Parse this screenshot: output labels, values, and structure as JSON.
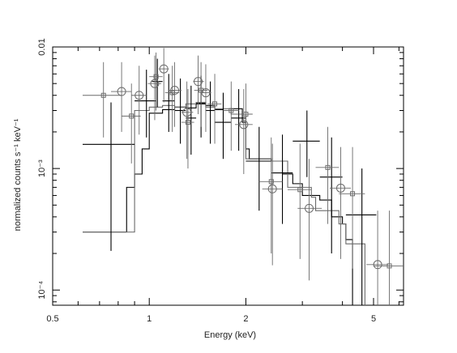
{
  "chart_data": {
    "type": "scatter",
    "title": "",
    "xlabel": "Energy (keV)",
    "ylabel": "normalized counts s⁻¹ keV⁻¹",
    "x_scale": "log",
    "y_scale": "log",
    "xlim": [
      0.5,
      6.2
    ],
    "ylim": [
      7.5e-05,
      0.01
    ],
    "x_ticks": [
      {
        "value": 0.5,
        "label": "0.5"
      },
      {
        "value": 1,
        "label": "1"
      },
      {
        "value": 2,
        "label": "2"
      },
      {
        "value": 5,
        "label": "5"
      }
    ],
    "y_ticks": [
      {
        "value": 0.0001,
        "label": "10⁻⁴"
      },
      {
        "value": 0.001,
        "label": "10⁻³"
      },
      {
        "value": 0.01,
        "label": "0.01"
      }
    ],
    "grid": false,
    "legend": false,
    "colors": {
      "black": "#000000",
      "grey": "#6a6a6a",
      "axis": "#000000"
    },
    "series": [
      {
        "marker": "cross",
        "color": "#000000",
        "points": [
          {
            "x": 0.76,
            "xerr": [
              0.62,
              0.9
            ],
            "y": 0.00158,
            "yerr": [
              0.00021,
              0.0035
            ]
          },
          {
            "x": 0.98,
            "xerr": [
              0.9,
              1.05
            ],
            "y": 0.0036,
            "yerr": [
              0.0018,
              0.0065
            ]
          },
          {
            "x": 1.06,
            "xerr": [
              1.02,
              1.1
            ],
            "y": 0.0052,
            "yerr": [
              0.0032,
              0.008
            ]
          },
          {
            "x": 1.15,
            "xerr": [
              1.1,
              1.2
            ],
            "y": 0.0036,
            "yerr": [
              0.002,
              0.006
            ]
          },
          {
            "x": 1.25,
            "xerr": [
              1.2,
              1.3
            ],
            "y": 0.003,
            "yerr": [
              0.0016,
              0.0055
            ]
          },
          {
            "x": 1.35,
            "xerr": [
              1.3,
              1.4
            ],
            "y": 0.0026,
            "yerr": [
              0.0013,
              0.0048
            ]
          },
          {
            "x": 1.45,
            "xerr": [
              1.4,
              1.5
            ],
            "y": 0.0034,
            "yerr": [
              0.0018,
              0.0058
            ]
          },
          {
            "x": 1.55,
            "xerr": [
              1.5,
              1.6
            ],
            "y": 0.003,
            "yerr": [
              0.0016,
              0.0052
            ]
          },
          {
            "x": 1.7,
            "xerr": [
              1.6,
              1.8
            ],
            "y": 0.0024,
            "yerr": [
              0.0012,
              0.0042
            ]
          },
          {
            "x": 1.9,
            "xerr": [
              1.8,
              2.0
            ],
            "y": 0.0026,
            "yerr": [
              0.0014,
              0.0045
            ]
          },
          {
            "x": 2.2,
            "xerr": [
              2.0,
              2.4
            ],
            "y": 0.00115,
            "yerr": [
              0.00045,
              0.0022
            ]
          },
          {
            "x": 2.6,
            "xerr": [
              2.4,
              2.8
            ],
            "y": 0.00092,
            "yerr": [
              0.00035,
              0.0019
            ]
          },
          {
            "x": 3.1,
            "xerr": [
              2.8,
              3.4
            ],
            "y": 0.00168,
            "yerr": [
              0.00085,
              0.003
            ]
          },
          {
            "x": 3.7,
            "xerr": [
              3.4,
              4.0
            ],
            "y": 0.00085,
            "yerr": [
              0.0002,
              0.0018
            ]
          },
          {
            "x": 4.6,
            "xerr": [
              4.1,
              5.1
            ],
            "y": 0.000415,
            "yerr": [
              7.5e-05,
              0.001
            ]
          }
        ]
      },
      {
        "marker": "square",
        "color": "#6a6a6a",
        "points": [
          {
            "x": 0.72,
            "xerr": [
              0.62,
              0.82
            ],
            "y": 0.004,
            "yerr": [
              0.0018,
              0.0075
            ]
          },
          {
            "x": 0.88,
            "xerr": [
              0.82,
              0.94
            ],
            "y": 0.0027,
            "yerr": [
              0.0011,
              0.005
            ]
          },
          {
            "x": 1.05,
            "xerr": [
              1.0,
              1.1
            ],
            "y": 0.0057,
            "yerr": [
              0.003,
              0.009
            ]
          },
          {
            "x": 1.18,
            "xerr": [
              1.12,
              1.24
            ],
            "y": 0.0042,
            "yerr": [
              0.002,
              0.007
            ]
          },
          {
            "x": 1.32,
            "xerr": [
              1.26,
              1.38
            ],
            "y": 0.0024,
            "yerr": [
              0.001,
              0.0045
            ]
          },
          {
            "x": 1.45,
            "xerr": [
              1.38,
              1.52
            ],
            "y": 0.0044,
            "yerr": [
              0.0022,
              0.0075
            ]
          },
          {
            "x": 1.6,
            "xerr": [
              1.52,
              1.68
            ],
            "y": 0.0034,
            "yerr": [
              0.0016,
              0.006
            ]
          },
          {
            "x": 1.8,
            "xerr": [
              1.7,
              1.9
            ],
            "y": 0.003,
            "yerr": [
              0.0014,
              0.0052
            ]
          },
          {
            "x": 2.0,
            "xerr": [
              1.9,
              2.1
            ],
            "y": 0.0028,
            "yerr": [
              0.0012,
              0.005
            ]
          },
          {
            "x": 2.4,
            "xerr": [
              2.2,
              2.6
            ],
            "y": 0.00078,
            "yerr": [
              0.0002,
              0.0018
            ]
          },
          {
            "x": 2.95,
            "xerr": [
              2.7,
              3.2
            ],
            "y": 0.00067,
            "yerr": [
              0.00018,
              0.0016
            ]
          },
          {
            "x": 3.6,
            "xerr": [
              3.3,
              3.9
            ],
            "y": 0.00102,
            "yerr": [
              0.00035,
              0.0022
            ]
          },
          {
            "x": 4.3,
            "xerr": [
              3.9,
              4.7
            ],
            "y": 0.00062,
            "yerr": [
              0.00015,
              0.0015
            ]
          },
          {
            "x": 5.6,
            "xerr": [
              5.0,
              6.2
            ],
            "y": 0.000158,
            "yerr": [
              7.5e-05,
              0.00045
            ]
          }
        ]
      },
      {
        "marker": "circle",
        "color": "#6a6a6a",
        "points": [
          {
            "x": 0.82,
            "xerr": [
              0.76,
              0.88
            ],
            "y": 0.0043,
            "yerr": [
              0.002,
              0.0075
            ]
          },
          {
            "x": 0.93,
            "xerr": [
              0.88,
              0.98
            ],
            "y": 0.004,
            "yerr": [
              0.0019,
              0.007
            ]
          },
          {
            "x": 1.04,
            "xerr": [
              0.99,
              1.09
            ],
            "y": 0.005,
            "yerr": [
              0.0025,
              0.0085
            ]
          },
          {
            "x": 1.11,
            "xerr": [
              1.07,
              1.15
            ],
            "y": 0.0066,
            "yerr": [
              0.0035,
              0.0098
            ]
          },
          {
            "x": 1.2,
            "xerr": [
              1.15,
              1.26
            ],
            "y": 0.0044,
            "yerr": [
              0.0022,
              0.0075
            ]
          },
          {
            "x": 1.31,
            "xerr": [
              1.26,
              1.37
            ],
            "y": 0.0029,
            "yerr": [
              0.0012,
              0.0052
            ]
          },
          {
            "x": 1.42,
            "xerr": [
              1.37,
              1.48
            ],
            "y": 0.0052,
            "yerr": [
              0.0028,
              0.0085
            ]
          },
          {
            "x": 1.5,
            "xerr": [
              1.45,
              1.56
            ],
            "y": 0.0042,
            "yerr": [
              0.002,
              0.0072
            ]
          },
          {
            "x": 1.97,
            "xerr": [
              1.85,
              2.1
            ],
            "y": 0.0023,
            "yerr": [
              0.0009,
              0.0045
            ]
          },
          {
            "x": 2.42,
            "xerr": [
              2.25,
              2.6
            ],
            "y": 0.00068,
            "yerr": [
              0.00016,
              0.0016
            ]
          },
          {
            "x": 3.15,
            "xerr": [
              2.9,
              3.45
            ],
            "y": 0.00047,
            "yerr": [
              0.00012,
              0.0012
            ]
          },
          {
            "x": 3.95,
            "xerr": [
              3.65,
              4.25
            ],
            "y": 0.00069,
            "yerr": [
              0.00018,
              0.0015
            ]
          },
          {
            "x": 5.15,
            "xerr": [
              4.75,
              5.55
            ],
            "y": 0.000162,
            "yerr": [
              7.5e-05,
              0.00045
            ]
          }
        ]
      }
    ],
    "models": [
      {
        "name": "",
        "color": "#000000",
        "steps": [
          [
            0.62,
            0.0003
          ],
          [
            0.85,
            0.0007
          ],
          [
            0.9,
            0.0009
          ],
          [
            0.95,
            0.00145
          ],
          [
            1.0,
            0.00285
          ],
          [
            1.1,
            0.00305
          ],
          [
            1.2,
            0.0032
          ],
          [
            1.3,
            0.00315
          ],
          [
            1.4,
            0.00345
          ],
          [
            1.5,
            0.0033
          ],
          [
            1.6,
            0.00305
          ],
          [
            1.7,
            0.003
          ],
          [
            1.8,
            0.0031
          ],
          [
            1.95,
            0.0024
          ],
          [
            2.0,
            0.00145
          ],
          [
            2.05,
            0.0012
          ],
          [
            2.4,
            0.00115
          ],
          [
            2.6,
            0.0009
          ],
          [
            2.8,
            0.00075
          ],
          [
            3.0,
            0.0006
          ],
          [
            3.4,
            0.00055
          ],
          [
            3.7,
            0.0004
          ],
          [
            4.0,
            0.00035
          ],
          [
            4.1,
            0.00026
          ],
          [
            4.3,
            7.5e-05
          ]
        ]
      },
      {
        "name": "",
        "color": "#6a6a6a",
        "steps": [
          [
            0.62,
            0.0003
          ],
          [
            0.85,
            0.0003
          ],
          [
            0.9,
            0.003
          ],
          [
            1.0,
            0.0032
          ],
          [
            1.1,
            0.0033
          ],
          [
            1.2,
            0.0032
          ],
          [
            1.3,
            0.0034
          ],
          [
            1.4,
            0.0035
          ],
          [
            1.5,
            0.0032
          ],
          [
            1.6,
            0.0031
          ],
          [
            1.8,
            0.0028
          ],
          [
            2.0,
            0.0012
          ],
          [
            2.4,
            0.00115
          ],
          [
            2.7,
            0.0007
          ],
          [
            3.2,
            0.00058
          ],
          [
            3.3,
            0.00045
          ],
          [
            3.9,
            0.00035
          ],
          [
            4.1,
            0.00024
          ],
          [
            4.7,
            7.5e-05
          ]
        ]
      }
    ]
  }
}
